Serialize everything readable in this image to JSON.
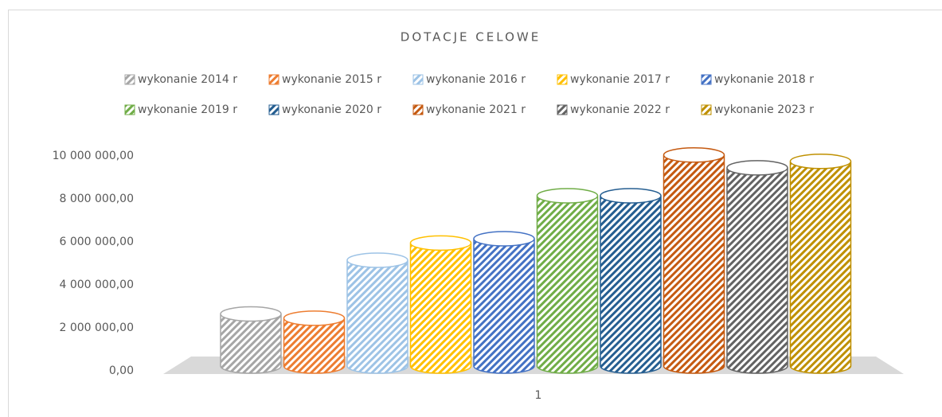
{
  "chart_data": {
    "type": "bar",
    "title": "DOTACJE CELOWE",
    "categories": [
      "1"
    ],
    "series": [
      {
        "name": "wykonanie 2014 r",
        "color": "#a6a6a6",
        "values": [
          2500000
        ]
      },
      {
        "name": "wykonanie 2015 r",
        "color": "#ed7d31",
        "values": [
          2300000
        ]
      },
      {
        "name": "wykonanie 2016 r",
        "color": "#9dc3e6",
        "values": [
          5000000
        ]
      },
      {
        "name": "wykonanie 2017 r",
        "color": "#ffc000",
        "values": [
          5800000
        ]
      },
      {
        "name": "wykonanie 2018 r",
        "color": "#4472c4",
        "values": [
          6000000
        ]
      },
      {
        "name": "wykonanie 2019 r",
        "color": "#70ad47",
        "values": [
          8000000
        ]
      },
      {
        "name": "wykonanie 2020 r",
        "color": "#255e91",
        "values": [
          8000000
        ]
      },
      {
        "name": "wykonanie 2021 r",
        "color": "#c55a11",
        "values": [
          9900000
        ]
      },
      {
        "name": "wykonanie 2022 r",
        "color": "#636363",
        "values": [
          9300000
        ]
      },
      {
        "name": "wykonanie 2023 r",
        "color": "#bf9000",
        "values": [
          9600000
        ]
      }
    ],
    "ylim": [
      0,
      10000000
    ],
    "yticks": [
      {
        "value": 0,
        "label": "0,00"
      },
      {
        "value": 2000000,
        "label": "2 000 000,00"
      },
      {
        "value": 4000000,
        "label": "4 000 000,00"
      },
      {
        "value": 6000000,
        "label": "6 000 000,00"
      },
      {
        "value": 8000000,
        "label": "8 000 000,00"
      },
      {
        "value": 10000000,
        "label": "10 000 000,00"
      }
    ],
    "legend": "top"
  }
}
